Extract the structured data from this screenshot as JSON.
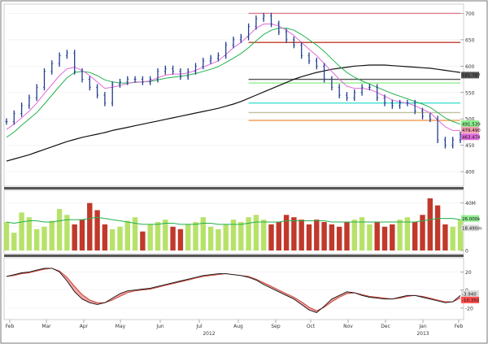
{
  "chart_data": [
    {
      "type": "line",
      "panel": "price",
      "y_ticks": [
        400,
        450,
        500,
        550,
        600,
        650,
        700
      ],
      "ylim": [
        380,
        710
      ],
      "x": [
        0,
        1,
        2,
        3,
        4,
        5,
        6,
        7,
        8,
        9,
        10,
        11,
        12,
        13,
        14,
        15,
        16,
        17,
        18,
        19,
        20,
        21,
        22,
        23,
        24,
        25,
        26,
        27,
        28,
        29,
        30,
        31,
        32,
        33,
        34,
        35,
        36,
        37,
        38,
        39,
        40,
        41,
        42,
        43,
        44,
        45,
        46,
        47,
        48,
        49,
        50,
        51,
        52,
        53,
        54,
        55,
        56,
        57,
        58,
        59,
        60
      ],
      "price_close": [
        495,
        510,
        525,
        540,
        560,
        590,
        605,
        620,
        625,
        590,
        575,
        560,
        545,
        530,
        565,
        570,
        575,
        575,
        570,
        575,
        590,
        595,
        590,
        580,
        590,
        600,
        610,
        615,
        620,
        640,
        650,
        655,
        675,
        690,
        695,
        680,
        665,
        650,
        640,
        620,
        610,
        600,
        575,
        560,
        545,
        540,
        550,
        560,
        560,
        540,
        530,
        525,
        530,
        530,
        515,
        505,
        500,
        460,
        450,
        460,
        470
      ],
      "ma_short": [
        480,
        490,
        502,
        515,
        530,
        548,
        565,
        582,
        595,
        598,
        592,
        582,
        570,
        558,
        560,
        563,
        567,
        570,
        570,
        572,
        578,
        583,
        585,
        585,
        587,
        592,
        598,
        604,
        610,
        622,
        635,
        645,
        658,
        672,
        680,
        680,
        676,
        668,
        658,
        645,
        632,
        620,
        605,
        590,
        575,
        562,
        558,
        558,
        556,
        550,
        543,
        536,
        532,
        530,
        525,
        518,
        512,
        498,
        485,
        478,
        478
      ],
      "ma_medium": [
        465,
        475,
        488,
        500,
        512,
        528,
        545,
        562,
        578,
        588,
        590,
        588,
        582,
        574,
        570,
        568,
        568,
        569,
        570,
        571,
        574,
        577,
        579,
        581,
        583,
        586,
        590,
        594,
        599,
        607,
        615,
        624,
        635,
        648,
        660,
        668,
        672,
        672,
        668,
        660,
        650,
        640,
        628,
        614,
        600,
        588,
        579,
        572,
        566,
        560,
        554,
        548,
        543,
        538,
        533,
        528,
        522,
        512,
        502,
        495,
        490
      ],
      "ma_long": [
        420,
        424,
        428,
        432,
        437,
        442,
        447,
        452,
        457,
        461,
        465,
        468,
        471,
        474,
        478,
        481,
        484,
        487,
        490,
        493,
        496,
        499,
        502,
        505,
        508,
        511,
        514,
        517,
        520,
        524,
        528,
        533,
        539,
        545,
        551,
        557,
        563,
        569,
        575,
        580,
        584,
        588,
        591,
        594,
        596,
        598,
        600,
        601,
        602,
        602,
        602,
        601,
        600,
        599,
        598,
        597,
        596,
        594,
        592,
        590,
        588
      ],
      "horizontal_levels": [
        {
          "value": 700,
          "color": "#e07a8a"
        },
        {
          "value": 645,
          "color": "#c0392b"
        },
        {
          "value": 575,
          "color": "#555555"
        },
        {
          "value": 568,
          "color": "#90ee90"
        },
        {
          "value": 530,
          "color": "#40e0d0"
        },
        {
          "value": 512,
          "color": "#c0c0a0"
        },
        {
          "value": 497,
          "color": "#f4a460"
        }
      ],
      "price_tags": [
        {
          "label": "581.787",
          "value": 583,
          "color": "#555555"
        },
        {
          "label": "491.539",
          "value": 491,
          "color": "#90ee90"
        },
        {
          "label": "479.490",
          "value": 479,
          "color": "#f0a0b0"
        },
        {
          "label": "463.474",
          "value": 466,
          "color": "#e06cdc"
        }
      ],
      "colors": {
        "price": "#1f3d8c",
        "ma_short": "#e06cdc",
        "ma_medium": "#22b14c",
        "ma_long": "#111111"
      }
    },
    {
      "type": "bar",
      "panel": "volume",
      "y_ticks": [
        0,
        20,
        40
      ],
      "tick_labels": [
        "0",
        "20M",
        "40M"
      ],
      "ylim": [
        0,
        48
      ],
      "values": [
        24,
        15,
        32,
        28,
        18,
        20,
        25,
        35,
        30,
        22,
        26,
        40,
        34,
        22,
        18,
        20,
        25,
        28,
        16,
        22,
        24,
        26,
        20,
        18,
        22,
        24,
        28,
        20,
        18,
        22,
        26,
        24,
        28,
        30,
        26,
        22,
        24,
        30,
        28,
        26,
        22,
        26,
        24,
        22,
        20,
        24,
        26,
        28,
        22,
        24,
        20,
        22,
        26,
        28,
        24,
        30,
        44,
        38,
        22,
        20,
        26
      ],
      "ma_volume": [
        24,
        23,
        24,
        25,
        25,
        24,
        24,
        25,
        26,
        26,
        26,
        27,
        28,
        27,
        26,
        25,
        24,
        23,
        22,
        22,
        22,
        23,
        23,
        22,
        22,
        22,
        23,
        23,
        22,
        22,
        22,
        22,
        23,
        24,
        24,
        24,
        24,
        25,
        25,
        25,
        25,
        25,
        25,
        24,
        24,
        24,
        24,
        24,
        24,
        24,
        24,
        24,
        24,
        24,
        24,
        25,
        26,
        27,
        27,
        27,
        26
      ],
      "tags": [
        {
          "label": "26.000k",
          "value": 27,
          "color": "#90ee90"
        },
        {
          "label": "18.490m",
          "value": 19,
          "color": "#dddddd"
        }
      ],
      "bar_colors": {
        "up": "#b7e26a",
        "down": "#c0392b"
      }
    },
    {
      "type": "line",
      "panel": "oscillator",
      "y_ticks": [
        -20,
        0,
        20
      ],
      "tick_labels": [
        "-20",
        "0",
        "20"
      ],
      "ylim": [
        -30,
        32
      ],
      "main": [
        15,
        17,
        19,
        20,
        22,
        24,
        24,
        20,
        10,
        -2,
        -10,
        -14,
        -16,
        -14,
        -9,
        -4,
        -1,
        0,
        1,
        2,
        4,
        6,
        8,
        10,
        12,
        14,
        16,
        17,
        18,
        18,
        17,
        16,
        14,
        11,
        6,
        2,
        -2,
        -6,
        -10,
        -16,
        -22,
        -25,
        -18,
        -10,
        -6,
        -2,
        -3,
        -6,
        -8,
        -9,
        -10,
        -10,
        -8,
        -6,
        -6,
        -8,
        -10,
        -12,
        -14,
        -13,
        -6
      ],
      "signal": [
        15,
        16,
        18,
        19,
        21,
        23,
        24,
        21,
        14,
        4,
        -5,
        -11,
        -14,
        -14,
        -11,
        -7,
        -3,
        -1,
        0,
        1,
        3,
        5,
        7,
        9,
        11,
        13,
        15,
        16,
        17,
        18,
        17,
        16,
        15,
        12,
        8,
        4,
        0,
        -4,
        -8,
        -13,
        -19,
        -23,
        -19,
        -13,
        -8,
        -4,
        -3,
        -5,
        -7,
        -8,
        -9,
        -10,
        -9,
        -7,
        -6,
        -7,
        -9,
        -11,
        -13,
        -13,
        -9
      ],
      "tags": [
        {
          "label": "-3.940",
          "value": -4,
          "color": "#dddddd"
        },
        {
          "label": "-10.350",
          "value": -11,
          "color": "#ff4d4d"
        }
      ],
      "colors": {
        "main": "#111111",
        "signal": "#c0392b",
        "fill": "#f4a3a3"
      }
    }
  ],
  "x_axis": {
    "labels": [
      "Feb",
      "Mar",
      "Apr",
      "May",
      "Jun",
      "Jul",
      "Aug",
      "Sep",
      "Oct",
      "Nov",
      "Dec",
      "Jan",
      "Feb"
    ],
    "year_labels": [
      "2012",
      "2013"
    ]
  }
}
